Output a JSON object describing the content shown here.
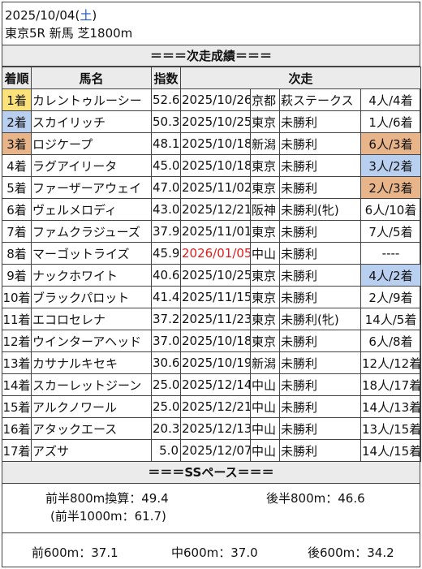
{
  "header": {
    "date": "2025/10/04",
    "weekday_open": "(",
    "weekday": "土",
    "weekday_close": ")",
    "race": "東京5R 新馬 芝1800m"
  },
  "results_title": "＝＝＝次走成績＝＝＝",
  "columns": [
    "着順",
    "馬名",
    "指数",
    "次走"
  ],
  "rows": [
    {
      "pos": "1着",
      "name": "カレントゥルーシー",
      "score": "52.6",
      "date": "2025/10/26",
      "venue": "京都",
      "race": "萩ステークス",
      "result": "4人/4着"
    },
    {
      "pos": "2着",
      "name": "スカイリッチ",
      "score": "50.3",
      "date": "2025/10/25",
      "venue": "東京",
      "race": "未勝利",
      "result": "1人/6着"
    },
    {
      "pos": "3着",
      "name": "ロジケープ",
      "score": "48.1",
      "date": "2025/10/18",
      "venue": "新潟",
      "race": "未勝利",
      "result": "6人/3着"
    },
    {
      "pos": "4着",
      "name": "ラグアイリータ",
      "score": "45.0",
      "date": "2025/10/18",
      "venue": "東京",
      "race": "未勝利",
      "result": "3人/2着"
    },
    {
      "pos": "5着",
      "name": "ファーザーアウェイ",
      "score": "47.0",
      "date": "2025/11/02",
      "venue": "東京",
      "race": "未勝利",
      "result": "2人/3着"
    },
    {
      "pos": "6着",
      "name": "ヴェルメロディ",
      "score": "43.0",
      "date": "2025/12/21",
      "venue": "阪神",
      "race": "未勝利(牝)",
      "result": "6人/10着"
    },
    {
      "pos": "7着",
      "name": "ファムクラジューズ",
      "score": "37.9",
      "date": "2025/11/01",
      "venue": "東京",
      "race": "未勝利",
      "result": "7人/5着"
    },
    {
      "pos": "8着",
      "name": "マーゴットライズ",
      "score": "45.9",
      "date": "2026/01/05",
      "venue": "中山",
      "race": "未勝利",
      "result": "----"
    },
    {
      "pos": "9着",
      "name": "ナックホワイト",
      "score": "40.6",
      "date": "2025/10/25",
      "venue": "東京",
      "race": "未勝利",
      "result": "4人/2着"
    },
    {
      "pos": "10着",
      "name": "ブラックパロット",
      "score": "41.4",
      "date": "2025/11/15",
      "venue": "東京",
      "race": "未勝利",
      "result": "2人/9着"
    },
    {
      "pos": "11着",
      "name": "エコロセレナ",
      "score": "37.2",
      "date": "2025/11/23",
      "venue": "東京",
      "race": "未勝利(牝)",
      "result": "14人/5着"
    },
    {
      "pos": "12着",
      "name": "ウインターアヘッド",
      "score": "37.0",
      "date": "2025/10/18",
      "venue": "東京",
      "race": "未勝利",
      "result": "6人/8着"
    },
    {
      "pos": "13着",
      "name": "カサナルキセキ",
      "score": "30.6",
      "date": "2025/10/19",
      "venue": "新潟",
      "race": "未勝利",
      "result": "12人/12着"
    },
    {
      "pos": "14着",
      "name": "スカーレットジーン",
      "score": "25.0",
      "date": "2025/12/14",
      "venue": "中山",
      "race": "未勝利",
      "result": "18人/17着"
    },
    {
      "pos": "15着",
      "name": "アルクノワール",
      "score": "25.0",
      "date": "2025/12/21",
      "venue": "中山",
      "race": "未勝利",
      "result": "14人/13着"
    },
    {
      "pos": "16着",
      "name": "アタックエース",
      "score": "20.3",
      "date": "2025/12/13",
      "venue": "中山",
      "race": "未勝利",
      "result": "13人/15着"
    },
    {
      "pos": "17着",
      "name": "アズサ",
      "score": "5.0",
      "date": "2025/12/07",
      "venue": "中山",
      "race": "未勝利",
      "result": "14人/15着"
    }
  ],
  "pace_title": "＝＝＝SSペース＝＝＝",
  "pace": {
    "first800": "前半800m換算：49.4",
    "last800": "後半800m：46.6",
    "first1000": "(前半1000m：61.7)"
  },
  "splits": {
    "front600": "前600m：37.1",
    "mid600": "中600m：37.0",
    "rear600": "後600m：34.2"
  },
  "highlight_colors": {
    "yellow": "#fbe27a",
    "blue": "#b9cff0",
    "brown": "#e8b48a",
    "future_date": "#e01b1b",
    "weekday": "#1a56c9"
  }
}
